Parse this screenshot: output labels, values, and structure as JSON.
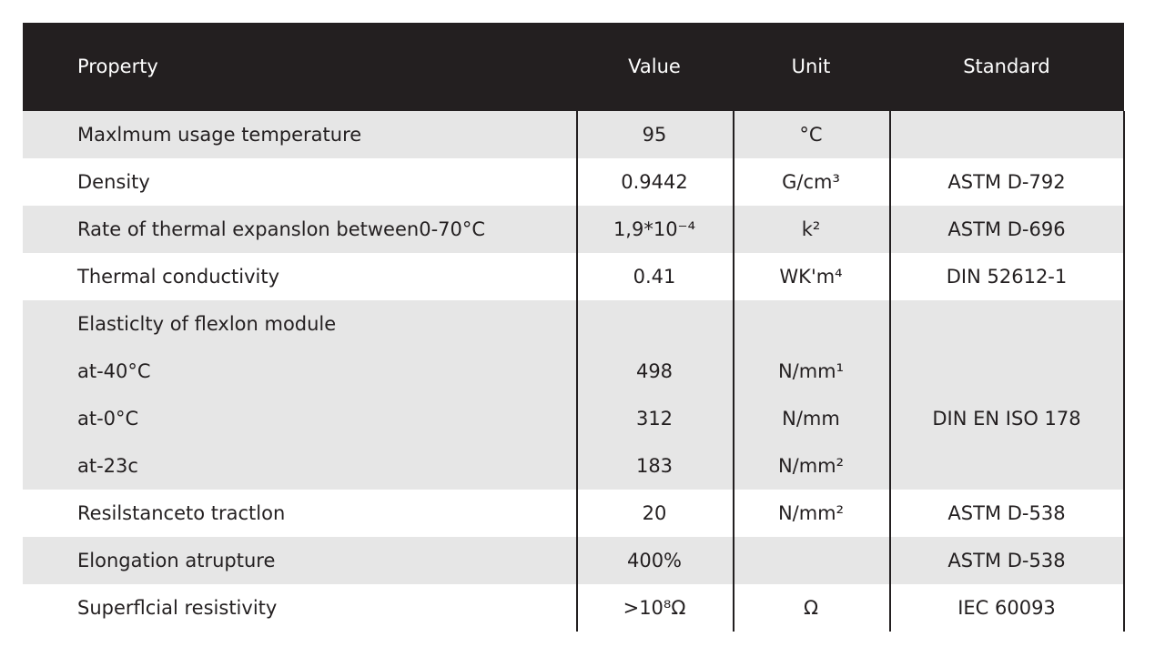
{
  "table": {
    "header": [
      "Property",
      "Value",
      "Unit",
      "Standard"
    ],
    "rows": [
      {
        "property": "Maxlmum usage temperature",
        "value": "95",
        "unit": "°C"
      },
      {
        "property": "Density",
        "value": "0.9442",
        "unit": "G/cm³",
        "standard": "ASTM D-792"
      },
      {
        "property": "Rate of thermal expanslon between0-70°C",
        "value": "1,9*10⁻⁴",
        "unit": "k²",
        "standard": "ASTM D-696"
      },
      {
        "property": "Thermal conductivity",
        "value": "0.41",
        "unit": "WK'm⁴",
        "standard": "DIN 52612-1"
      },
      {
        "property": "Elasticlty of flexlon module",
        "standard": "DIN EN ISO 178",
        "sub_rows": [
          {
            "property": "at-40°C",
            "value": "498",
            "unit": "N/mm¹"
          },
          {
            "property": "at-0°C",
            "value": "312",
            "unit": "N/mm"
          },
          {
            "property": "at-23c",
            "value": "183",
            "unit": "N/mm²"
          }
        ]
      },
      {
        "property": "Resilstanceto tractlon",
        "value": "20",
        "unit": "N/mm²",
        "standard": "ASTM D-538"
      },
      {
        "property": "Elongation atrupture",
        "value": "400%",
        "standard": "ASTM D-538"
      },
      {
        "property": "Superflcial resistivity",
        "value": ">10⁸Ω",
        "unit": "Ω",
        "standard": "IEC 60093"
      }
    ]
  }
}
